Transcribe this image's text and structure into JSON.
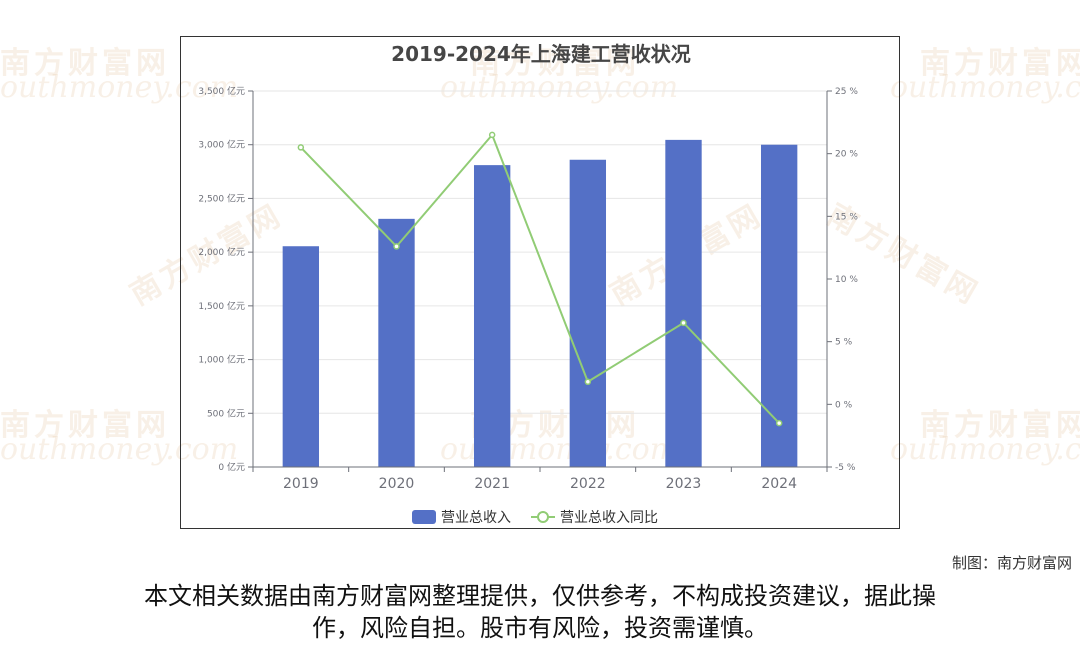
{
  "chart_data": {
    "type": "bar+line",
    "title": "2019-2024年上海建工营收状况",
    "categories": [
      "2019",
      "2020",
      "2021",
      "2022",
      "2023",
      "2024"
    ],
    "series": [
      {
        "name": "营业总收入",
        "type": "bar",
        "axis": "left",
        "color": "#5470c6",
        "values": [
          2055,
          2310,
          2810,
          2860,
          3045,
          3000
        ]
      },
      {
        "name": "营业总收入同比",
        "type": "line",
        "axis": "right",
        "color": "#91cc75",
        "values": [
          20.5,
          12.6,
          21.5,
          1.8,
          6.5,
          -1.5
        ]
      }
    ],
    "y_left": {
      "min": 0,
      "max": 3500,
      "ticks": [
        "0 亿元",
        "500 亿元",
        "1,000 亿元",
        "1,500 亿元",
        "2,000 亿元",
        "2,500 亿元",
        "3,000 亿元",
        "3,500 亿元"
      ]
    },
    "y_right": {
      "min": -5,
      "max": 25,
      "ticks": [
        "-5 %",
        "0 %",
        "5 %",
        "10 %",
        "15 %",
        "20 %",
        "25 %"
      ]
    },
    "grid": true,
    "legend": "bottom-center"
  },
  "footer": {
    "credit": "制图：南方财富网",
    "disclaimer_line1": "本文相关数据由南方财富网整理提供，仅供参考，不构成投资建议，据此操",
    "disclaimer_line2": "作，风险自担。股市有风险，投资需谨慎。"
  },
  "watermark": {
    "cn": "南方财富网",
    "en": "outhmoney.com"
  }
}
